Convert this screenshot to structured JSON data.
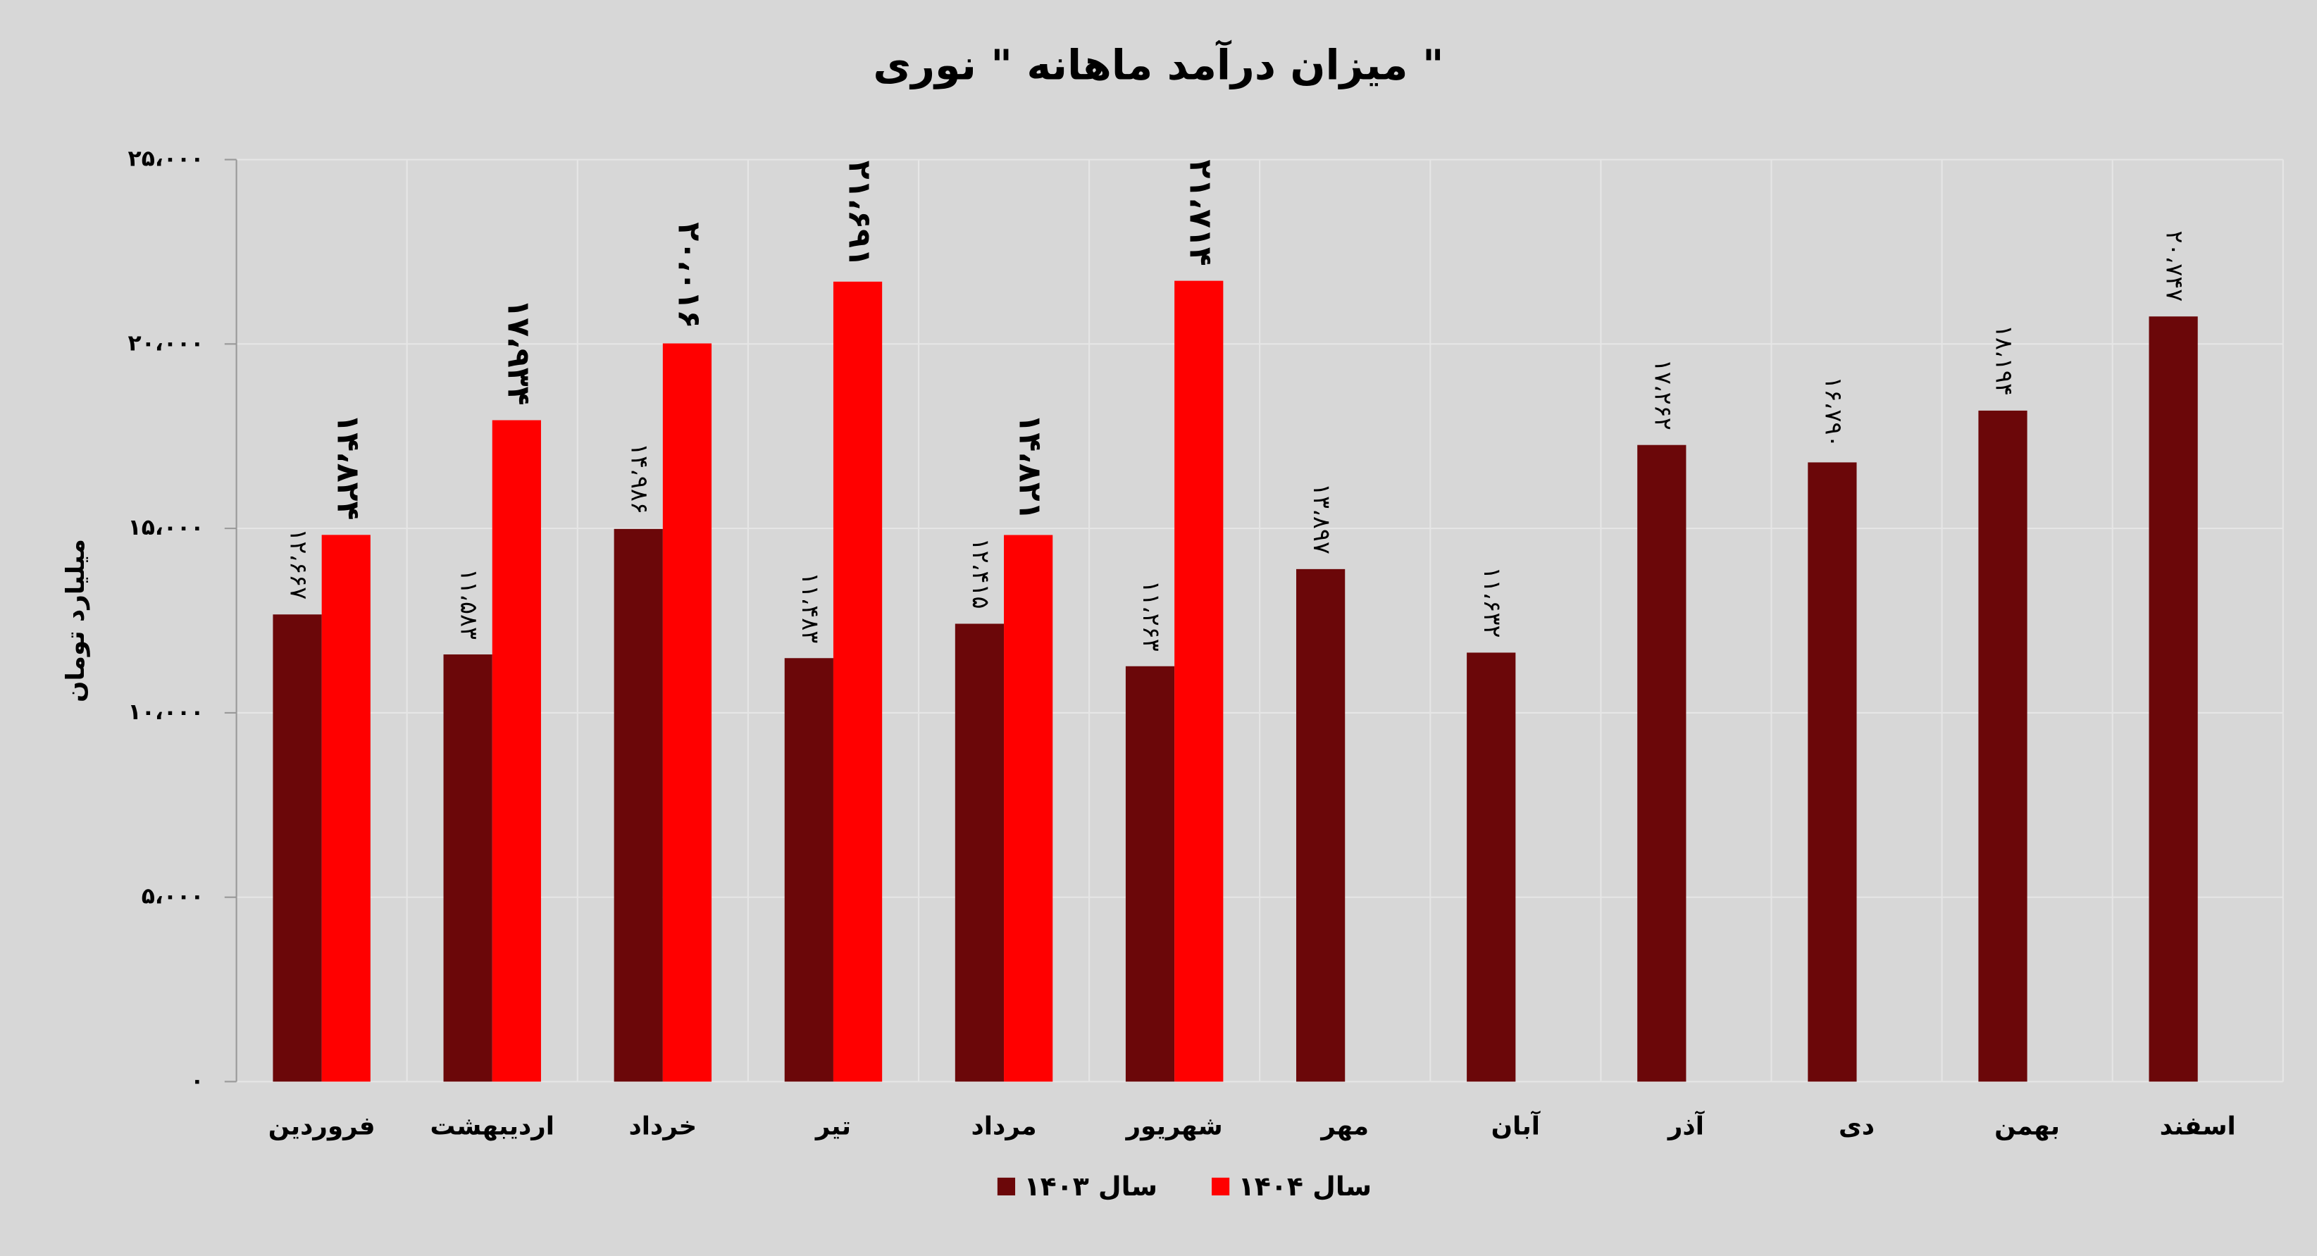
{
  "chart_data": {
    "type": "bar",
    "title": "میزان درآمد ماهانه \" نوری \"",
    "y_label": "میلیارد تومان",
    "categories": [
      "فروردین",
      "اردیبهشت",
      "خرداد",
      "تیر",
      "مرداد",
      "شهریور",
      "مهر",
      "آبان",
      "آذر",
      "دی",
      "بهمن",
      "اسفند"
    ],
    "series": [
      {
        "name": "سال ۱۴۰۳",
        "color": "#6b0709",
        "values": [
          12667,
          11583,
          14986,
          11483,
          12415,
          11263,
          13897,
          11632,
          17262,
          16790,
          18194,
          20747
        ],
        "value_labels": [
          "۱۲،۶۶۷",
          "۱۱،۵۸۳",
          "۱۴،۹۸۶",
          "۱۱،۴۸۳",
          "۱۲،۴۱۵",
          "۱۱،۲۶۳",
          "۱۳،۸۹۷",
          "۱۱،۶۳۲",
          "۱۷،۲۶۲",
          "۱۶،۷۹۰",
          "۱۸،۱۹۴",
          "۲۰،۷۴۷"
        ]
      },
      {
        "name": "سال ۱۴۰۴",
        "color": "#ff0000",
        "values": [
          14824,
          17934,
          20016,
          21691,
          14821,
          21714,
          null,
          null,
          null,
          null,
          null,
          null
        ],
        "value_labels": [
          "۱۴،۸۲۴",
          "۱۷،۹۳۴",
          "۲۰،۰۱۶",
          "۲۱،۶۹۱",
          "۱۴،۸۲۱",
          "۲۱،۷۱۴",
          null,
          null,
          null,
          null,
          null,
          null
        ]
      }
    ],
    "ylim": [
      0,
      25000
    ],
    "yticks": [
      {
        "value": 0,
        "label": "۰"
      },
      {
        "value": 5000,
        "label": "۵،۰۰۰"
      },
      {
        "value": 10000,
        "label": "۱۰،۰۰۰"
      },
      {
        "value": 15000,
        "label": "۱۵،۰۰۰"
      },
      {
        "value": 20000,
        "label": "۲۰،۰۰۰"
      },
      {
        "value": 25000,
        "label": "۲۵،۰۰۰"
      }
    ],
    "grid": true,
    "legend": "bottom"
  }
}
